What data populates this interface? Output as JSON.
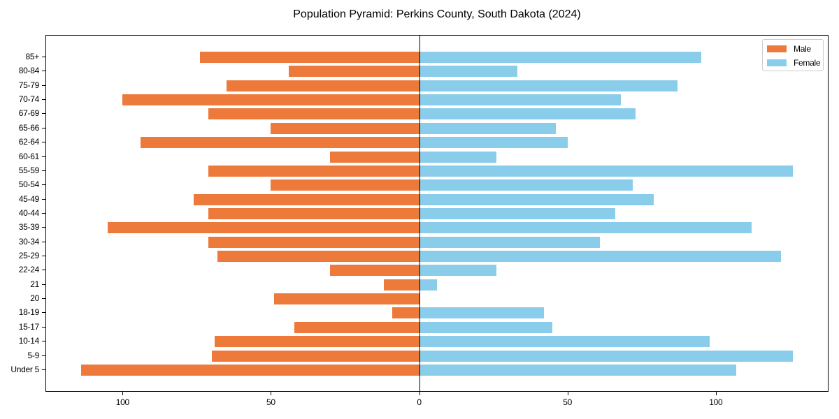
{
  "chart_data": {
    "type": "bar",
    "orientation": "horizontal",
    "subtype": "population-pyramid",
    "title": "Population Pyramid: Perkins County, South Dakota (2024)",
    "xlabel": "",
    "ylabel": "",
    "xlim": [
      -126,
      138
    ],
    "xticks": [
      -100,
      -50,
      0,
      50,
      100
    ],
    "xtick_labels": [
      "100",
      "50",
      "0",
      "50",
      "100"
    ],
    "grid": false,
    "legend_position": "upper right",
    "categories": [
      "85+",
      "80-84",
      "75-79",
      "70-74",
      "67-69",
      "65-66",
      "62-64",
      "60-61",
      "55-59",
      "50-54",
      "45-49",
      "40-44",
      "35-39",
      "30-34",
      "25-29",
      "22-24",
      "21",
      "20",
      "18-19",
      "15-17",
      "10-14",
      "5-9",
      "Under 5"
    ],
    "series": [
      {
        "name": "Male",
        "color": "#ED7A3B",
        "side": "left",
        "values": [
          74,
          44,
          65,
          100,
          71,
          50,
          94,
          30,
          71,
          50,
          76,
          71,
          105,
          71,
          68,
          30,
          12,
          49,
          9,
          42,
          69,
          70,
          114
        ]
      },
      {
        "name": "Female",
        "color": "#89CDEA",
        "side": "right",
        "values": [
          95,
          33,
          87,
          68,
          73,
          46,
          50,
          26,
          126,
          72,
          79,
          66,
          112,
          61,
          122,
          26,
          6,
          0,
          42,
          45,
          98,
          126,
          107
        ]
      }
    ]
  },
  "legend": {
    "items": [
      {
        "label": "Male",
        "color": "#ED7A3B"
      },
      {
        "label": "Female",
        "color": "#89CDEA"
      }
    ]
  }
}
